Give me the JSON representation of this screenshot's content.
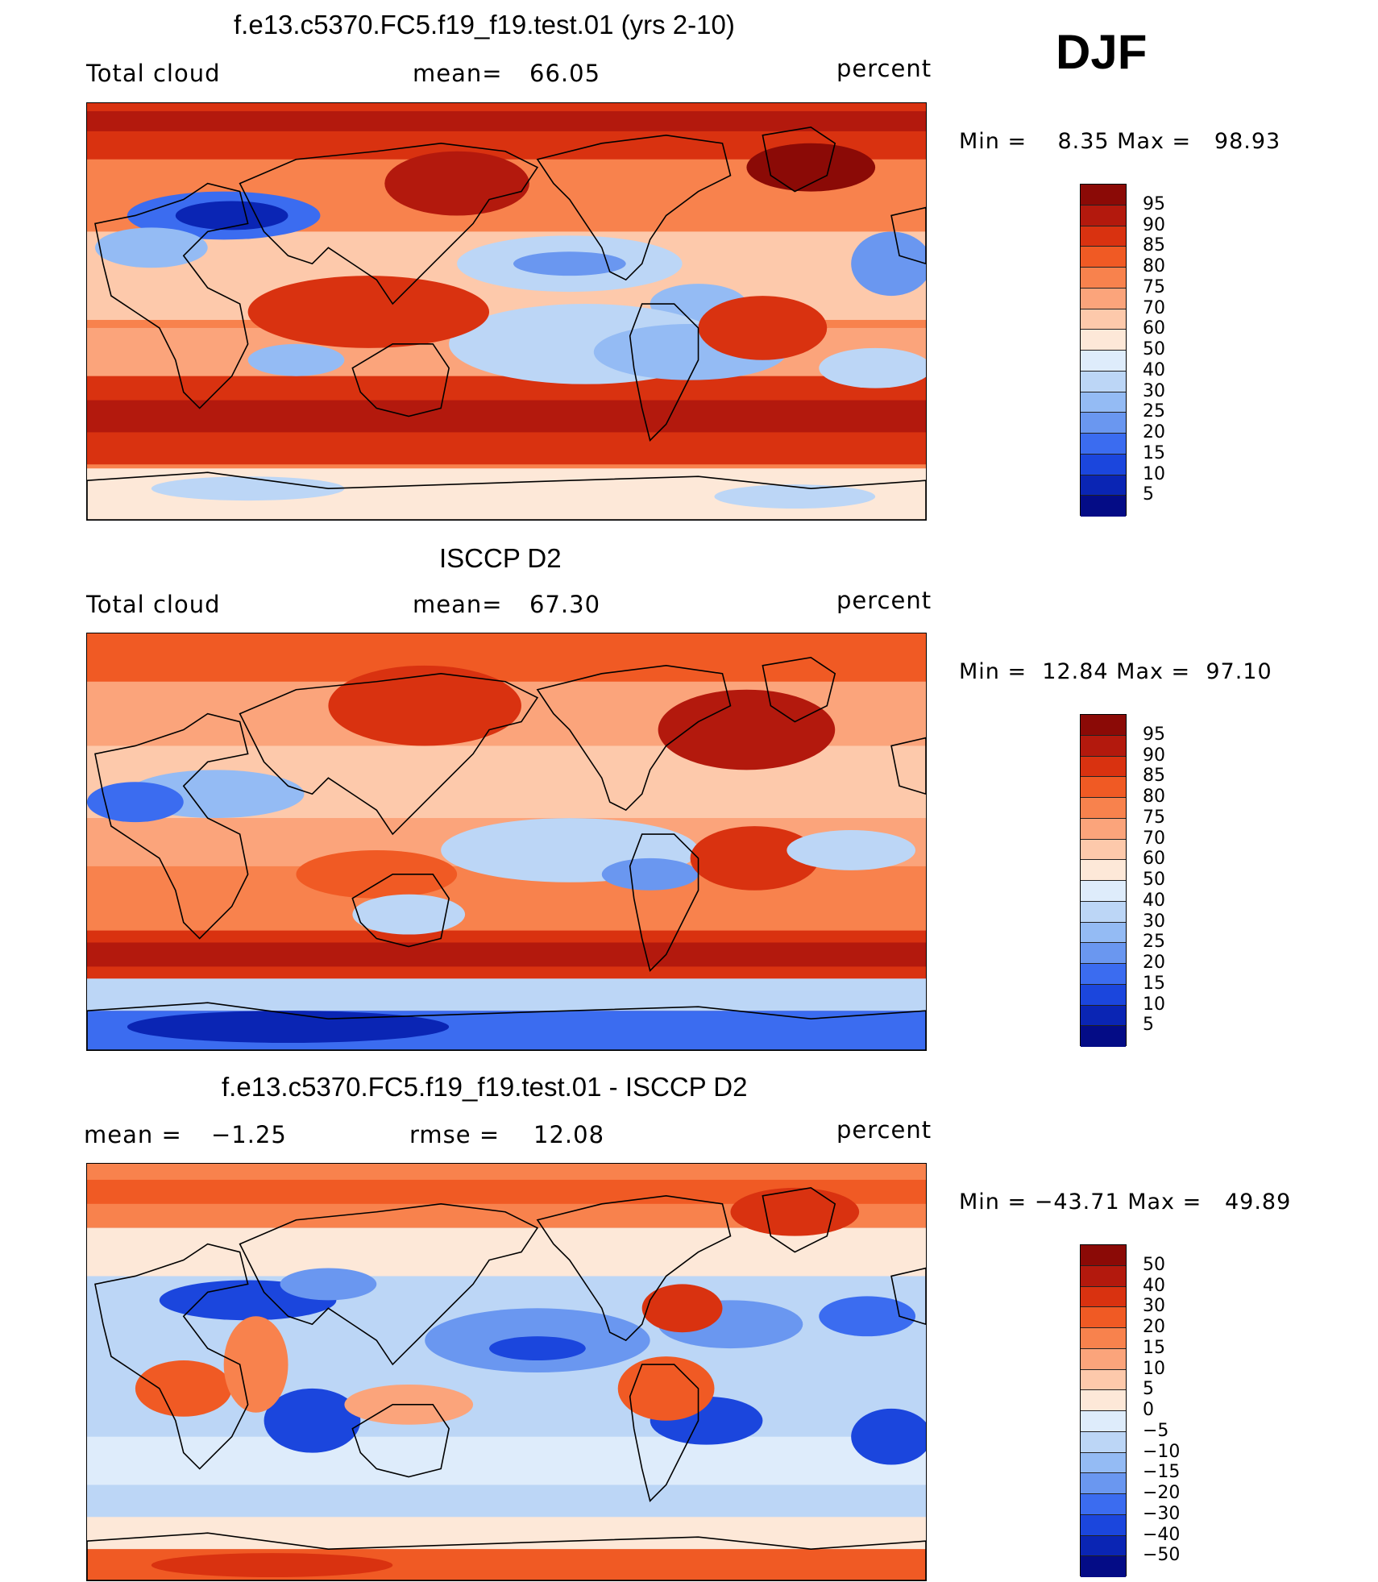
{
  "season": "DJF",
  "palette_abs": [
    "#8b0a06",
    "#b3190d",
    "#d93210",
    "#f05a24",
    "#f8824d",
    "#fba47b",
    "#fdc9ab",
    "#fde8d8",
    "#deecfb",
    "#bcd6f6",
    "#94bbf4",
    "#6a97f0",
    "#3b6cf0",
    "#1b46dd",
    "#0a25b4",
    "#040c86"
  ],
  "palette_diff": [
    "#8b0a06",
    "#b3190d",
    "#d93210",
    "#f05a24",
    "#f8824d",
    "#fba47b",
    "#fdc9ab",
    "#fde8d8",
    "#deecfb",
    "#bcd6f6",
    "#94bbf4",
    "#6a97f0",
    "#3b6cf0",
    "#1b46dd",
    "#0a25b4",
    "#040c86"
  ],
  "panels": [
    {
      "title": "f.e13.c5370.FC5.f19_f19.test.01 (yrs 2-10)",
      "left_label": "Total cloud",
      "stat1_label": "mean=",
      "stat1_value": "66.05",
      "units": "percent",
      "minmax": "Min =    8.35 Max =   98.93",
      "ticks": [
        "95",
        "90",
        "85",
        "80",
        "75",
        "70",
        "60",
        "50",
        "40",
        "30",
        "25",
        "20",
        "15",
        "10",
        "5"
      ]
    },
    {
      "title": "ISCCP D2",
      "left_label": "Total cloud",
      "stat1_label": "mean=",
      "stat1_value": "67.30",
      "units": "percent",
      "minmax": "Min =  12.84 Max =  97.10",
      "ticks": [
        "95",
        "90",
        "85",
        "80",
        "75",
        "70",
        "60",
        "50",
        "40",
        "30",
        "25",
        "20",
        "15",
        "10",
        "5"
      ]
    },
    {
      "title": "f.e13.c5370.FC5.f19_f19.test.01 - ISCCP D2",
      "left_label": "mean =",
      "left_value": "−1.25",
      "stat1_label": "rmse =",
      "stat1_value": "12.08",
      "units": "percent",
      "minmax": "Min = −43.71 Max =   49.89",
      "ticks": [
        "50",
        "40",
        "30",
        "20",
        "15",
        "10",
        "5",
        "0",
        "−5",
        "−10",
        "−15",
        "−20",
        "−30",
        "−40",
        "−50"
      ]
    }
  ]
}
